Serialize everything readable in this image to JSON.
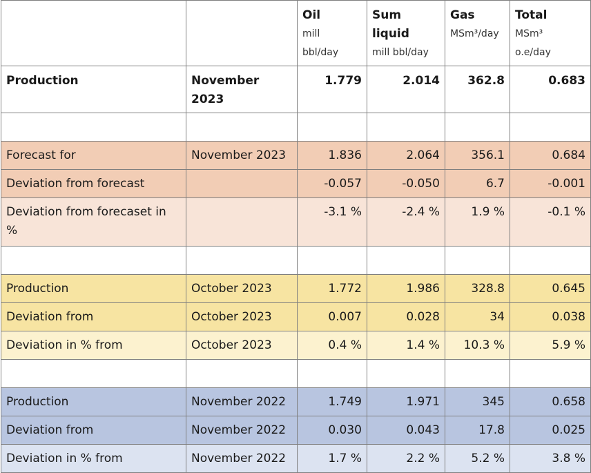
{
  "columns": {
    "oil": {
      "title": "Oil",
      "unit_line1": "mill",
      "unit_line2": "bbl/day"
    },
    "sum_liquid": {
      "title_line1": "Sum",
      "title_line2": "liquid",
      "unit": "mill bbl/day"
    },
    "gas": {
      "title": "Gas",
      "unit": "MSm³/day"
    },
    "total": {
      "title": "Total",
      "unit_line1": "MSm³",
      "unit_line2": "o.e/day"
    }
  },
  "production_row": {
    "label": "Production",
    "period_line1": "November",
    "period_line2": "2023",
    "oil": "1.779",
    "sum_liquid": "2.014",
    "gas": "362.8",
    "total": "0.683"
  },
  "forecast_group": {
    "color": "#f2cdb5",
    "rows": [
      {
        "label": "Forecast for",
        "period": "November 2023",
        "oil": "1.836",
        "sum_liquid": "2.064",
        "gas": "356.1",
        "total": "0.684"
      },
      {
        "label": "Deviation from forecast",
        "period": "",
        "oil": "-0.057",
        "sum_liquid": "-0.050",
        "gas": "6.7",
        "total": "-0.001"
      },
      {
        "label": "Deviation from forecaset in %",
        "period": "",
        "oil": "-3.1 %",
        "sum_liquid": "-2.4 %",
        "gas": "1.9 %",
        "total": "-0.1 %"
      }
    ]
  },
  "previous_month_group": {
    "color": "#f7e4a2",
    "rows": [
      {
        "label": "Production",
        "period": "October 2023",
        "oil": "1.772",
        "sum_liquid": "1.986",
        "gas": "328.8",
        "total": "0.645"
      },
      {
        "label": "Deviation from",
        "period": "October 2023",
        "oil": "0.007",
        "sum_liquid": "0.028",
        "gas": "34",
        "total": "0.038"
      },
      {
        "label": "Deviation in % from",
        "period": "October 2023",
        "oil": "0.4 %",
        "sum_liquid": "1.4 %",
        "gas": "10.3 %",
        "total": "5.9 %"
      }
    ]
  },
  "previous_year_group": {
    "color": "#b8c5e0",
    "rows": [
      {
        "label": "Production",
        "period": "November 2022",
        "oil": "1.749",
        "sum_liquid": "1.971",
        "gas": "345",
        "total": "0.658"
      },
      {
        "label": "Deviation from",
        "period": "November 2022",
        "oil": "0.030",
        "sum_liquid": "0.043",
        "gas": "17.8",
        "total": "0.025"
      },
      {
        "label": "Deviation in % from",
        "period": "November 2022",
        "oil": "1.7 %",
        "sum_liquid": "2.2 %",
        "gas": "5.2 %",
        "total": "3.8 %"
      }
    ]
  }
}
